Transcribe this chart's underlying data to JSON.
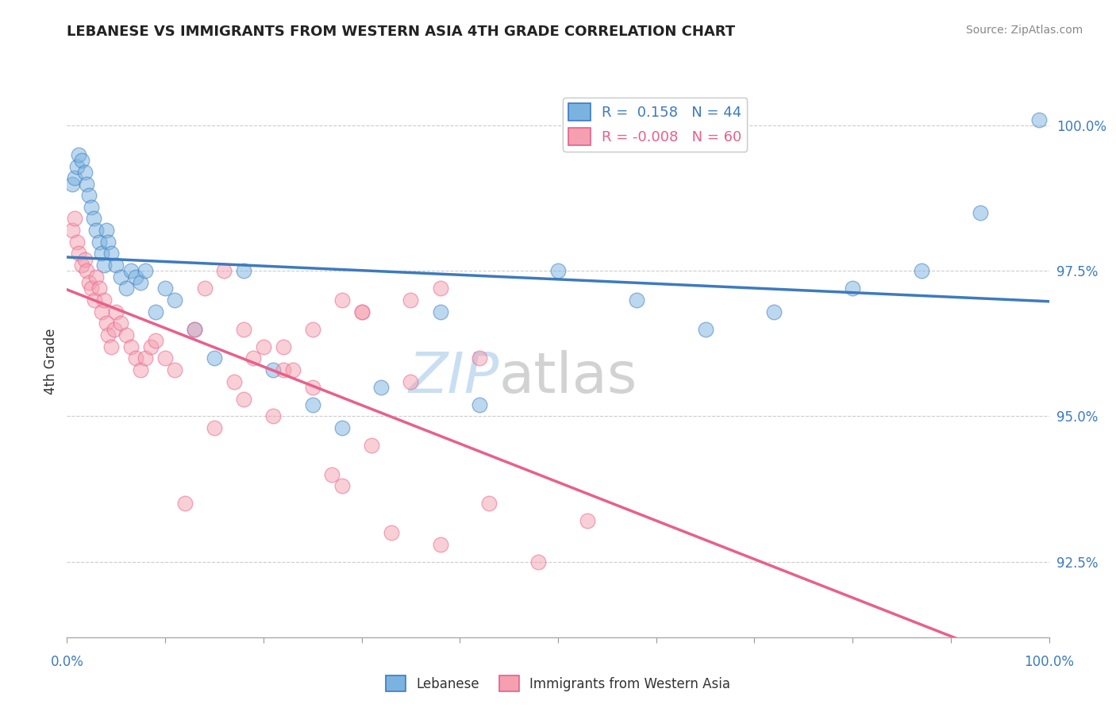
{
  "title": "LEBANESE VS IMMIGRANTS FROM WESTERN ASIA 4TH GRADE CORRELATION CHART",
  "source": "Source: ZipAtlas.com",
  "ylabel": "4th Grade",
  "xlim": [
    0.0,
    1.0
  ],
  "ylim": [
    0.912,
    1.007
  ],
  "yticks": [
    0.925,
    0.95,
    0.975,
    1.0
  ],
  "ytick_labels": [
    "92.5%",
    "95.0%",
    "97.5%",
    "100.0%"
  ],
  "blue_R": 0.158,
  "blue_N": 44,
  "pink_R": -0.008,
  "pink_N": 60,
  "blue_color": "#7ab3e0",
  "pink_color": "#f4a0b0",
  "blue_line_color": "#3d7abf",
  "pink_line_color": "#e8608a",
  "legend_blue_label": "Lebanese",
  "legend_pink_label": "Immigrants from Western Asia",
  "blue_x": [
    0.005,
    0.008,
    0.01,
    0.012,
    0.015,
    0.018,
    0.02,
    0.022,
    0.025,
    0.027,
    0.03,
    0.033,
    0.035,
    0.038,
    0.04,
    0.042,
    0.045,
    0.05,
    0.055,
    0.06,
    0.065,
    0.07,
    0.075,
    0.08,
    0.09,
    0.1,
    0.11,
    0.13,
    0.15,
    0.18,
    0.21,
    0.25,
    0.28,
    0.32,
    0.38,
    0.42,
    0.5,
    0.58,
    0.65,
    0.72,
    0.8,
    0.87,
    0.93,
    0.99
  ],
  "blue_y": [
    0.99,
    0.991,
    0.993,
    0.995,
    0.994,
    0.992,
    0.99,
    0.988,
    0.986,
    0.984,
    0.982,
    0.98,
    0.978,
    0.976,
    0.982,
    0.98,
    0.978,
    0.976,
    0.974,
    0.972,
    0.975,
    0.974,
    0.973,
    0.975,
    0.968,
    0.972,
    0.97,
    0.965,
    0.96,
    0.975,
    0.958,
    0.952,
    0.948,
    0.955,
    0.968,
    0.952,
    0.975,
    0.97,
    0.965,
    0.968,
    0.972,
    0.975,
    0.985,
    1.001
  ],
  "pink_x": [
    0.005,
    0.008,
    0.01,
    0.012,
    0.015,
    0.018,
    0.02,
    0.022,
    0.025,
    0.028,
    0.03,
    0.033,
    0.035,
    0.038,
    0.04,
    0.042,
    0.045,
    0.048,
    0.05,
    0.055,
    0.06,
    0.065,
    0.07,
    0.075,
    0.08,
    0.085,
    0.09,
    0.1,
    0.11,
    0.13,
    0.14,
    0.16,
    0.18,
    0.2,
    0.22,
    0.25,
    0.28,
    0.3,
    0.35,
    0.38,
    0.42,
    0.25,
    0.3,
    0.35,
    0.18,
    0.22,
    0.12,
    0.15,
    0.19,
    0.17,
    0.21,
    0.27,
    0.31,
    0.23,
    0.28,
    0.33,
    0.38,
    0.43,
    0.48,
    0.53
  ],
  "pink_y": [
    0.982,
    0.984,
    0.98,
    0.978,
    0.976,
    0.977,
    0.975,
    0.973,
    0.972,
    0.97,
    0.974,
    0.972,
    0.968,
    0.97,
    0.966,
    0.964,
    0.962,
    0.965,
    0.968,
    0.966,
    0.964,
    0.962,
    0.96,
    0.958,
    0.96,
    0.962,
    0.963,
    0.96,
    0.958,
    0.965,
    0.972,
    0.975,
    0.965,
    0.962,
    0.958,
    0.965,
    0.97,
    0.968,
    0.956,
    0.972,
    0.96,
    0.955,
    0.968,
    0.97,
    0.953,
    0.962,
    0.935,
    0.948,
    0.96,
    0.956,
    0.95,
    0.94,
    0.945,
    0.958,
    0.938,
    0.93,
    0.928,
    0.935,
    0.925,
    0.932
  ]
}
